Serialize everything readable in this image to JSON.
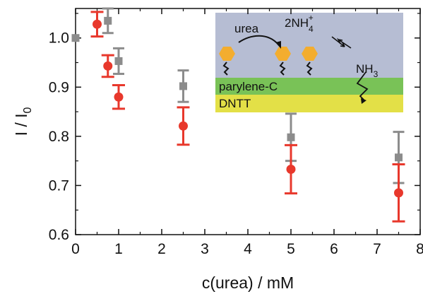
{
  "chart_data": {
    "type": "scatter",
    "xlabel": "c(urea) / mM",
    "ylabel_main": "I / I",
    "ylabel_sub": "0",
    "xlim": [
      0,
      8
    ],
    "ylim": [
      0.6,
      1.06
    ],
    "x_ticks": [
      "0",
      "1",
      "2",
      "3",
      "4",
      "5",
      "6",
      "7",
      "8"
    ],
    "y_ticks": [
      "0.6",
      "0.7",
      "0.8",
      "0.9",
      "1.0"
    ],
    "grid": false,
    "series": [
      {
        "color": "#e8382c",
        "marker": "circle",
        "points": [
          {
            "x": 0.5,
            "y": 1.028,
            "err": 0.025
          },
          {
            "x": 0.75,
            "y": 0.943,
            "err": 0.022
          },
          {
            "x": 1.0,
            "y": 0.88,
            "err": 0.024
          },
          {
            "x": 2.5,
            "y": 0.821,
            "err": 0.038
          },
          {
            "x": 5.0,
            "y": 0.733,
            "err": 0.049
          },
          {
            "x": 7.5,
            "y": 0.685,
            "err": 0.058
          }
        ]
      },
      {
        "color": "#8c8c8c",
        "marker": "square",
        "points": [
          {
            "x": 0.0,
            "y": 1.0,
            "err": 0.0
          },
          {
            "x": 0.75,
            "y": 1.035,
            "err": 0.025
          },
          {
            "x": 1.0,
            "y": 0.953,
            "err": 0.026
          },
          {
            "x": 2.5,
            "y": 0.902,
            "err": 0.032
          },
          {
            "x": 5.0,
            "y": 0.798,
            "err": 0.048
          },
          {
            "x": 7.5,
            "y": 0.757,
            "err": 0.052
          }
        ]
      }
    ]
  },
  "inset": {
    "urea": "urea",
    "nh4": "2NH",
    "nh4_sub": "4",
    "nh4_sup": "+",
    "nh3": "NH",
    "nh3_sub": "3",
    "parylene": "parylene-C",
    "dntt": "DNTT",
    "colors": {
      "solution": "#b6bdd3",
      "parylene": "#79c257",
      "dntt": "#e3e047",
      "enzyme": "#f3ad2f"
    }
  }
}
